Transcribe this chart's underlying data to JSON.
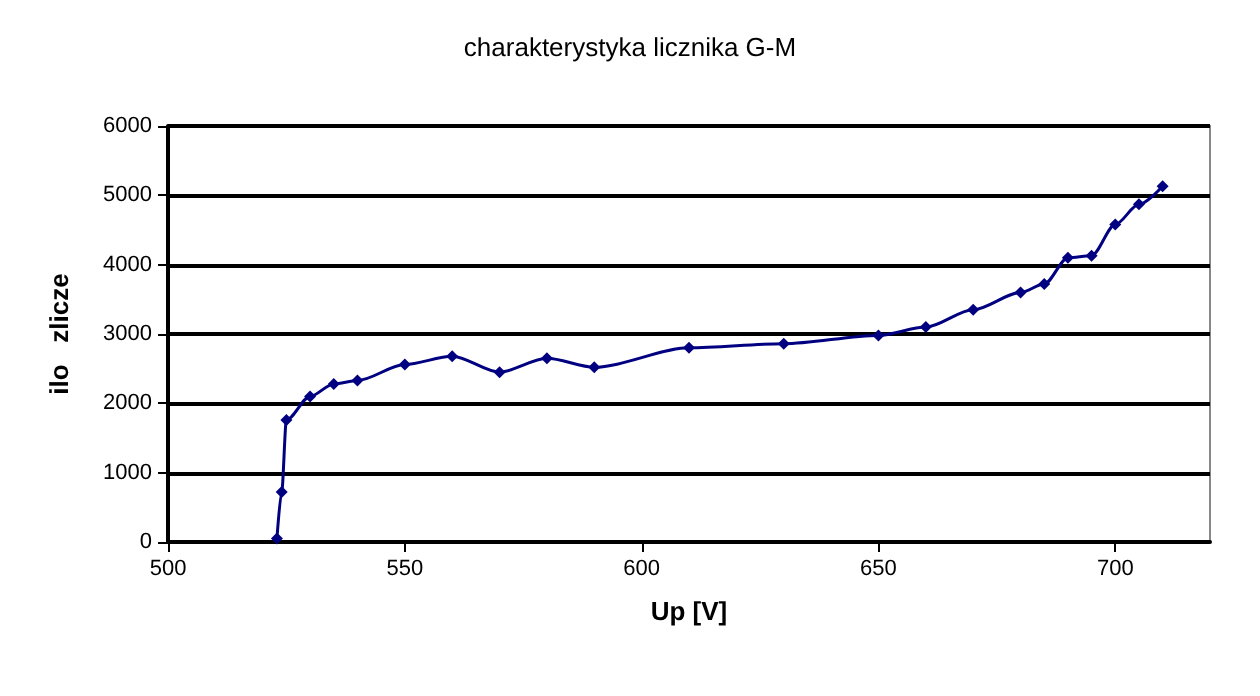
{
  "chart_data": {
    "type": "line",
    "title": "charakterystyka licznika G-M",
    "xlabel": "Up [V]",
    "ylabel": "ilo   zlicze",
    "series": [
      {
        "color": "#000080",
        "x": [
          523,
          524,
          525,
          530,
          535,
          540,
          550,
          560,
          570,
          580,
          590,
          610,
          630,
          650,
          660,
          670,
          680,
          685,
          690,
          695,
          700,
          705,
          710
        ],
        "values": [
          50,
          720,
          1760,
          2100,
          2280,
          2330,
          2560,
          2680,
          2450,
          2650,
          2520,
          2800,
          2860,
          2980,
          3100,
          3350,
          3600,
          3720,
          4100,
          4130,
          4580,
          4870,
          5130
        ]
      }
    ],
    "xlim": [
      500,
      720
    ],
    "xticks": [
      500,
      550,
      600,
      650,
      700
    ],
    "ylim": [
      0,
      6000
    ],
    "yticks": [
      0,
      1000,
      2000,
      3000,
      4000,
      5000,
      6000
    ],
    "grid": "y",
    "marker": "diamond",
    "line_style": "solid"
  }
}
